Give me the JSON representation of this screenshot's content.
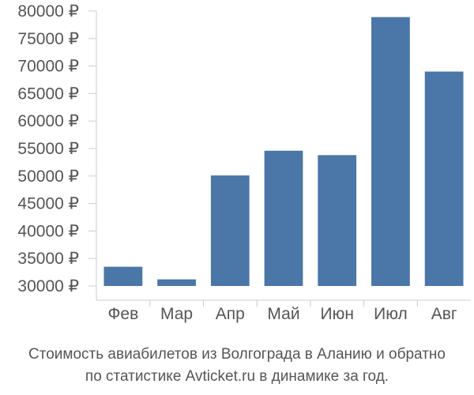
{
  "chart_data": {
    "type": "bar",
    "categories": [
      "Фев",
      "Мар",
      "Апр",
      "Май",
      "Июн",
      "Июл",
      "Авг"
    ],
    "values": [
      33500,
      31200,
      50100,
      54600,
      53800,
      78900,
      69000
    ],
    "ylim": [
      29000,
      81000
    ],
    "yticks": [
      30000,
      35000,
      40000,
      45000,
      50000,
      55000,
      60000,
      65000,
      70000,
      75000,
      80000
    ],
    "ytick_labels": [
      "30000 ₽",
      "35000 ₽",
      "40000 ₽",
      "45000 ₽",
      "50000 ₽",
      "55000 ₽",
      "60000 ₽",
      "65000 ₽",
      "70000 ₽",
      "75000 ₽",
      "80000 ₽"
    ],
    "grid": false,
    "bar_color": "#4a76a8",
    "caption_lines": [
      "Стоимость авиабилетов из Волгограда в Аланию и обратно",
      "по статистике Avticket.ru в динамике за год."
    ]
  }
}
